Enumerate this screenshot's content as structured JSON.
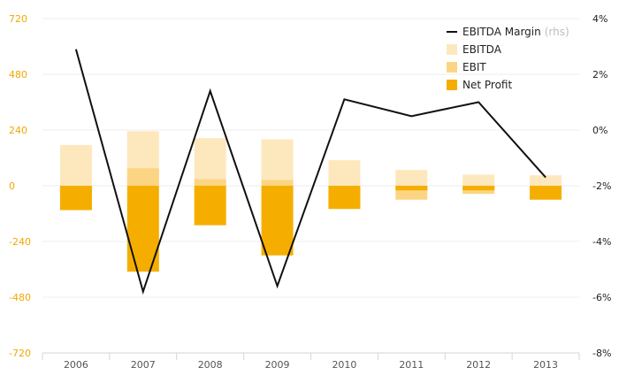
{
  "chart_data": {
    "type": "bar",
    "categories": [
      "2006",
      "2007",
      "2008",
      "2009",
      "2010",
      "2011",
      "2012",
      "2013"
    ],
    "series": [
      {
        "name": "EBITDA",
        "kind": "bar",
        "axis": "left",
        "color": "#fde8bd",
        "values": [
          175,
          235,
          205,
          200,
          110,
          68,
          48,
          45
        ]
      },
      {
        "name": "EBIT",
        "kind": "bar",
        "axis": "left",
        "color": "#fcd584",
        "values": [
          -95,
          75,
          28,
          25,
          -95,
          -60,
          -35,
          -58
        ]
      },
      {
        "name": "Net Profit",
        "kind": "bar",
        "axis": "left",
        "color": "#f5ae00",
        "values": [
          -105,
          -370,
          -170,
          -300,
          -100,
          -20,
          -20,
          -60
        ]
      },
      {
        "name": "EBITDA Margin",
        "kind": "line",
        "axis": "right",
        "color": "#111111",
        "values": [
          2.9,
          -5.8,
          1.4,
          -5.6,
          1.1,
          0.5,
          1.0,
          -1.7
        ]
      }
    ],
    "left_axis": {
      "min": -720,
      "max": 720,
      "ticks": [
        "720",
        "480",
        "240",
        "0",
        "-240",
        "-480",
        "-720"
      ],
      "color": "#f0a800"
    },
    "right_axis": {
      "min": -8,
      "max": 4,
      "ticks": [
        "4%",
        "2%",
        "0%",
        "-2%",
        "-4%",
        "-6%",
        "-8%"
      ]
    },
    "legend": {
      "position": "top-right",
      "items": [
        {
          "label": "EBITDA Margin",
          "suffix": "(rhs)",
          "type": "line",
          "color": "#111111"
        },
        {
          "label": "EBITDA",
          "type": "box",
          "color": "#fde8bd"
        },
        {
          "label": "EBIT",
          "type": "box",
          "color": "#fcd584"
        },
        {
          "label": "Net Profit",
          "type": "box",
          "color": "#f5ae00"
        }
      ]
    },
    "grid": true,
    "title": "",
    "xlabel": "",
    "ylabel": ""
  }
}
